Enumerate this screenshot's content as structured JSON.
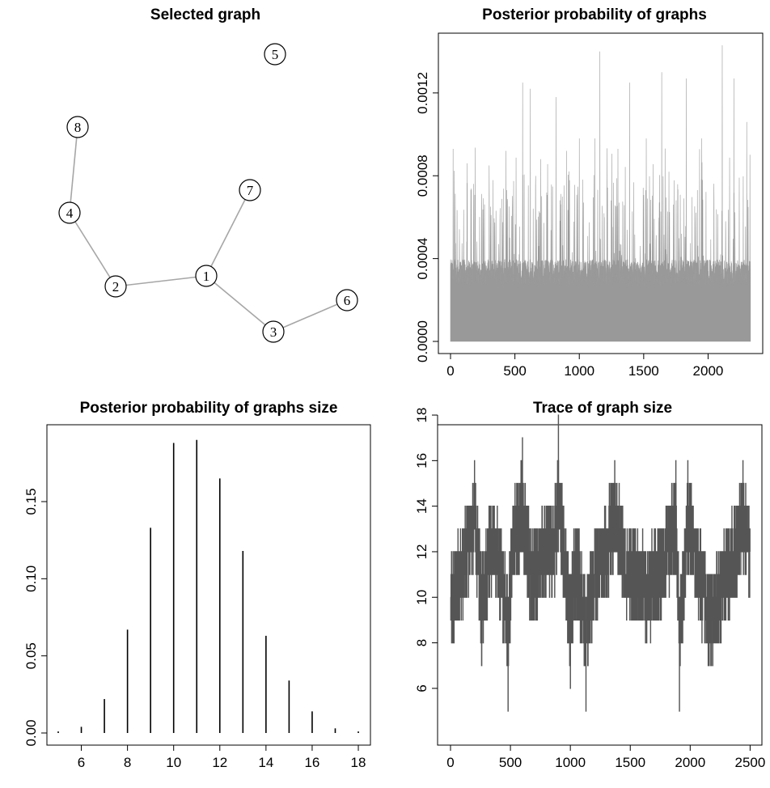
{
  "figure": {
    "panels": [
      {
        "title": "Selected graph"
      },
      {
        "title": "Posterior probability of graphs"
      },
      {
        "title": "Posterior probability of graphs size"
      },
      {
        "title": "Trace of graph size"
      }
    ]
  },
  "chart_data": [
    {
      "type": "network",
      "title": "Selected graph",
      "nodes": [
        "1",
        "2",
        "3",
        "4",
        "5",
        "6",
        "7",
        "8"
      ],
      "edges": [
        [
          "8",
          "4"
        ],
        [
          "4",
          "2"
        ],
        [
          "2",
          "1"
        ],
        [
          "1",
          "7"
        ],
        [
          "1",
          "3"
        ],
        [
          "3",
          "6"
        ]
      ],
      "colors": {
        "edge": "#a6a6a6",
        "node_border": "#000000",
        "node_fill": "#ffffff"
      }
    },
    {
      "type": "area",
      "title": "Posterior probability of graphs",
      "xlabel": "",
      "ylabel": "",
      "xlim": [
        0,
        2330
      ],
      "ylim": [
        0,
        0.00143
      ],
      "x_ticks": [
        0,
        500,
        1000,
        1500,
        2000
      ],
      "y_ticks": [
        0.0,
        0.0004,
        0.0008,
        0.0012
      ],
      "y_tick_labels": [
        "0.0000",
        "0.0004",
        "0.0008",
        "0.0012"
      ],
      "n_points": 2330,
      "baseline_level": 0.00036,
      "peaks": [
        {
          "x": 20,
          "y": 0.00093
        },
        {
          "x": 130,
          "y": 0.00086
        },
        {
          "x": 300,
          "y": 0.00085
        },
        {
          "x": 430,
          "y": 0.00092
        },
        {
          "x": 560,
          "y": 0.00125
        },
        {
          "x": 620,
          "y": 0.00122
        },
        {
          "x": 700,
          "y": 0.00088
        },
        {
          "x": 820,
          "y": 0.00118
        },
        {
          "x": 900,
          "y": 0.00092
        },
        {
          "x": 1000,
          "y": 0.00098
        },
        {
          "x": 1120,
          "y": 0.00098
        },
        {
          "x": 1160,
          "y": 0.0014
        },
        {
          "x": 1300,
          "y": 0.00093
        },
        {
          "x": 1390,
          "y": 0.00125
        },
        {
          "x": 1520,
          "y": 0.00098
        },
        {
          "x": 1640,
          "y": 0.0013
        },
        {
          "x": 1830,
          "y": 0.00127
        },
        {
          "x": 1950,
          "y": 0.00098
        },
        {
          "x": 2110,
          "y": 0.00143
        },
        {
          "x": 2200,
          "y": 0.00127
        },
        {
          "x": 2300,
          "y": 0.00106
        }
      ],
      "colors": {
        "fill": "#999999"
      }
    },
    {
      "type": "bar",
      "title": "Posterior probability of graphs size",
      "xlabel": "",
      "ylabel": "",
      "categories": [
        5,
        6,
        7,
        8,
        9,
        10,
        11,
        12,
        13,
        14,
        15,
        16,
        17,
        18
      ],
      "values": [
        0.001,
        0.004,
        0.022,
        0.067,
        0.133,
        0.188,
        0.19,
        0.165,
        0.118,
        0.063,
        0.034,
        0.014,
        0.003,
        0.001
      ],
      "xlim": [
        4.5,
        18.5
      ],
      "ylim": [
        0,
        0.196
      ],
      "x_ticks": [
        6,
        8,
        10,
        12,
        14,
        16,
        18
      ],
      "y_ticks": [
        0.0,
        0.05,
        0.1,
        0.15
      ],
      "y_tick_labels": [
        "0.00",
        "0.05",
        "0.10",
        "0.15"
      ],
      "colors": {
        "bar": "#000000"
      }
    },
    {
      "type": "line",
      "title": "Trace of graph size",
      "xlabel": "",
      "ylabel": "",
      "xlim": [
        0,
        2500
      ],
      "ylim": [
        4.5,
        18.5
      ],
      "x_ticks": [
        0,
        500,
        1000,
        1500,
        2000,
        2500
      ],
      "y_ticks": [
        6,
        8,
        10,
        12,
        14,
        16,
        18
      ],
      "n_points": 2500,
      "keypoints": [
        {
          "x": 0,
          "y": 10
        },
        {
          "x": 20,
          "y": 8
        },
        {
          "x": 120,
          "y": 12
        },
        {
          "x": 200,
          "y": 16
        },
        {
          "x": 260,
          "y": 7
        },
        {
          "x": 330,
          "y": 14
        },
        {
          "x": 420,
          "y": 11
        },
        {
          "x": 480,
          "y": 5
        },
        {
          "x": 520,
          "y": 14
        },
        {
          "x": 600,
          "y": 17
        },
        {
          "x": 680,
          "y": 10
        },
        {
          "x": 760,
          "y": 12
        },
        {
          "x": 880,
          "y": 14
        },
        {
          "x": 900,
          "y": 18
        },
        {
          "x": 960,
          "y": 11
        },
        {
          "x": 1000,
          "y": 6
        },
        {
          "x": 1050,
          "y": 12
        },
        {
          "x": 1130,
          "y": 5
        },
        {
          "x": 1200,
          "y": 11
        },
        {
          "x": 1300,
          "y": 13
        },
        {
          "x": 1370,
          "y": 16
        },
        {
          "x": 1450,
          "y": 12
        },
        {
          "x": 1550,
          "y": 10
        },
        {
          "x": 1650,
          "y": 9
        },
        {
          "x": 1760,
          "y": 11
        },
        {
          "x": 1880,
          "y": 16
        },
        {
          "x": 1910,
          "y": 5
        },
        {
          "x": 1980,
          "y": 16
        },
        {
          "x": 2050,
          "y": 12
        },
        {
          "x": 2150,
          "y": 7
        },
        {
          "x": 2240,
          "y": 8
        },
        {
          "x": 2350,
          "y": 12
        },
        {
          "x": 2440,
          "y": 16
        },
        {
          "x": 2500,
          "y": 12
        }
      ],
      "colors": {
        "line": "#555555"
      }
    }
  ]
}
